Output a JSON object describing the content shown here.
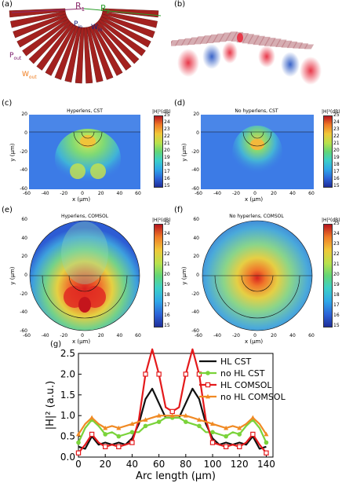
{
  "panels": {
    "a": {
      "label": "(a)",
      "r1": "R",
      "r1_sub": "1",
      "r2": "R",
      "r2_sub": "2",
      "pin": "P",
      "pin_sub": "in",
      "win": "W",
      "win_sub": "in",
      "pout": "P",
      "pout_sub": "out",
      "wout": "W",
      "wout_sub": "out"
    },
    "b": {
      "label": "(b)"
    },
    "c": {
      "label": "(c)",
      "title": "Hyperlens, CST"
    },
    "d": {
      "label": "(d)",
      "title": "No hyperlens, CST"
    },
    "e": {
      "label": "(e)",
      "title": "Hyperlens, COMSOL"
    },
    "f": {
      "label": "(f)",
      "title": "No hyperlens, COMSOL"
    },
    "g": {
      "label": "(g)"
    }
  },
  "axes": {
    "x_label": "x (μm)",
    "y_label": "y (μm)",
    "cb_unit": "|H|²(dB)",
    "cst_y_ticks": [
      "20",
      "0",
      "-20",
      "-40",
      "-60"
    ],
    "comsol_y_ticks": [
      "60",
      "40",
      "20",
      "0",
      "-20",
      "-40",
      "-60"
    ],
    "x_ticks": [
      "-60",
      "-40",
      "-20",
      "0",
      "20",
      "40",
      "60"
    ],
    "cb_ticks": [
      "25",
      "24",
      "23",
      "22",
      "21",
      "20",
      "19",
      "18",
      "17",
      "16",
      "15"
    ]
  },
  "chart_data": {
    "type": "line",
    "xlabel": "Arc length (μm)",
    "ylabel": "|H|² (a.u.)",
    "xlim": [
      0,
      145
    ],
    "ylim": [
      0,
      2.5
    ],
    "x_ticks": [
      0,
      20,
      40,
      60,
      80,
      100,
      120,
      140
    ],
    "y_ticks": [
      0.0,
      0.5,
      1.0,
      1.5,
      2.0,
      2.5
    ],
    "legend_position": "top-right",
    "series": [
      {
        "name": "HL CST",
        "color": "#111111",
        "marker": "none",
        "x": [
          0,
          5,
          10,
          15,
          20,
          25,
          30,
          35,
          40,
          45,
          50,
          55,
          60,
          65,
          70,
          75,
          80,
          85,
          90,
          95,
          100,
          105,
          110,
          115,
          120,
          125,
          130,
          135,
          140
        ],
        "y": [
          0.25,
          0.2,
          0.5,
          0.3,
          0.35,
          0.3,
          0.35,
          0.3,
          0.45,
          0.8,
          1.4,
          1.65,
          1.3,
          0.95,
          0.95,
          0.95,
          1.3,
          1.65,
          1.4,
          0.8,
          0.45,
          0.3,
          0.35,
          0.3,
          0.35,
          0.3,
          0.5,
          0.2,
          0.25
        ]
      },
      {
        "name": "no HL CST",
        "color": "#7ad33a",
        "marker": "circle",
        "x": [
          0,
          5,
          10,
          15,
          20,
          25,
          30,
          35,
          40,
          45,
          50,
          55,
          60,
          65,
          70,
          75,
          80,
          85,
          90,
          95,
          100,
          105,
          110,
          115,
          120,
          125,
          130,
          135,
          140
        ],
        "y": [
          0.35,
          0.7,
          0.9,
          0.75,
          0.55,
          0.6,
          0.5,
          0.55,
          0.6,
          0.6,
          0.75,
          0.8,
          0.85,
          0.95,
          0.95,
          0.95,
          0.85,
          0.8,
          0.75,
          0.6,
          0.6,
          0.55,
          0.5,
          0.6,
          0.55,
          0.75,
          0.9,
          0.7,
          0.35
        ]
      },
      {
        "name": "HL COMSOL",
        "color": "#e41a1c",
        "marker": "square",
        "x": [
          0,
          5,
          10,
          15,
          20,
          25,
          30,
          35,
          40,
          45,
          50,
          55,
          60,
          65,
          70,
          75,
          80,
          85,
          90,
          95,
          100,
          105,
          110,
          115,
          120,
          125,
          130,
          135,
          140
        ],
        "y": [
          0.1,
          0.3,
          0.55,
          0.35,
          0.25,
          0.3,
          0.25,
          0.3,
          0.35,
          0.9,
          2.0,
          2.6,
          2.0,
          1.2,
          1.1,
          1.2,
          2.0,
          2.6,
          2.0,
          0.9,
          0.35,
          0.3,
          0.25,
          0.3,
          0.25,
          0.35,
          0.55,
          0.3,
          0.1
        ]
      },
      {
        "name": "no HL COMSOL",
        "color": "#f08a24",
        "marker": "triangle",
        "x": [
          0,
          5,
          10,
          15,
          20,
          25,
          30,
          35,
          40,
          45,
          50,
          55,
          60,
          65,
          70,
          75,
          80,
          85,
          90,
          95,
          100,
          105,
          110,
          115,
          120,
          125,
          130,
          135,
          140
        ],
        "y": [
          0.55,
          0.8,
          0.95,
          0.8,
          0.7,
          0.75,
          0.7,
          0.75,
          0.8,
          0.85,
          0.9,
          0.95,
          1.0,
          1.0,
          1.0,
          1.0,
          1.0,
          0.95,
          0.9,
          0.85,
          0.8,
          0.75,
          0.7,
          0.75,
          0.7,
          0.8,
          0.95,
          0.8,
          0.55
        ]
      }
    ]
  }
}
